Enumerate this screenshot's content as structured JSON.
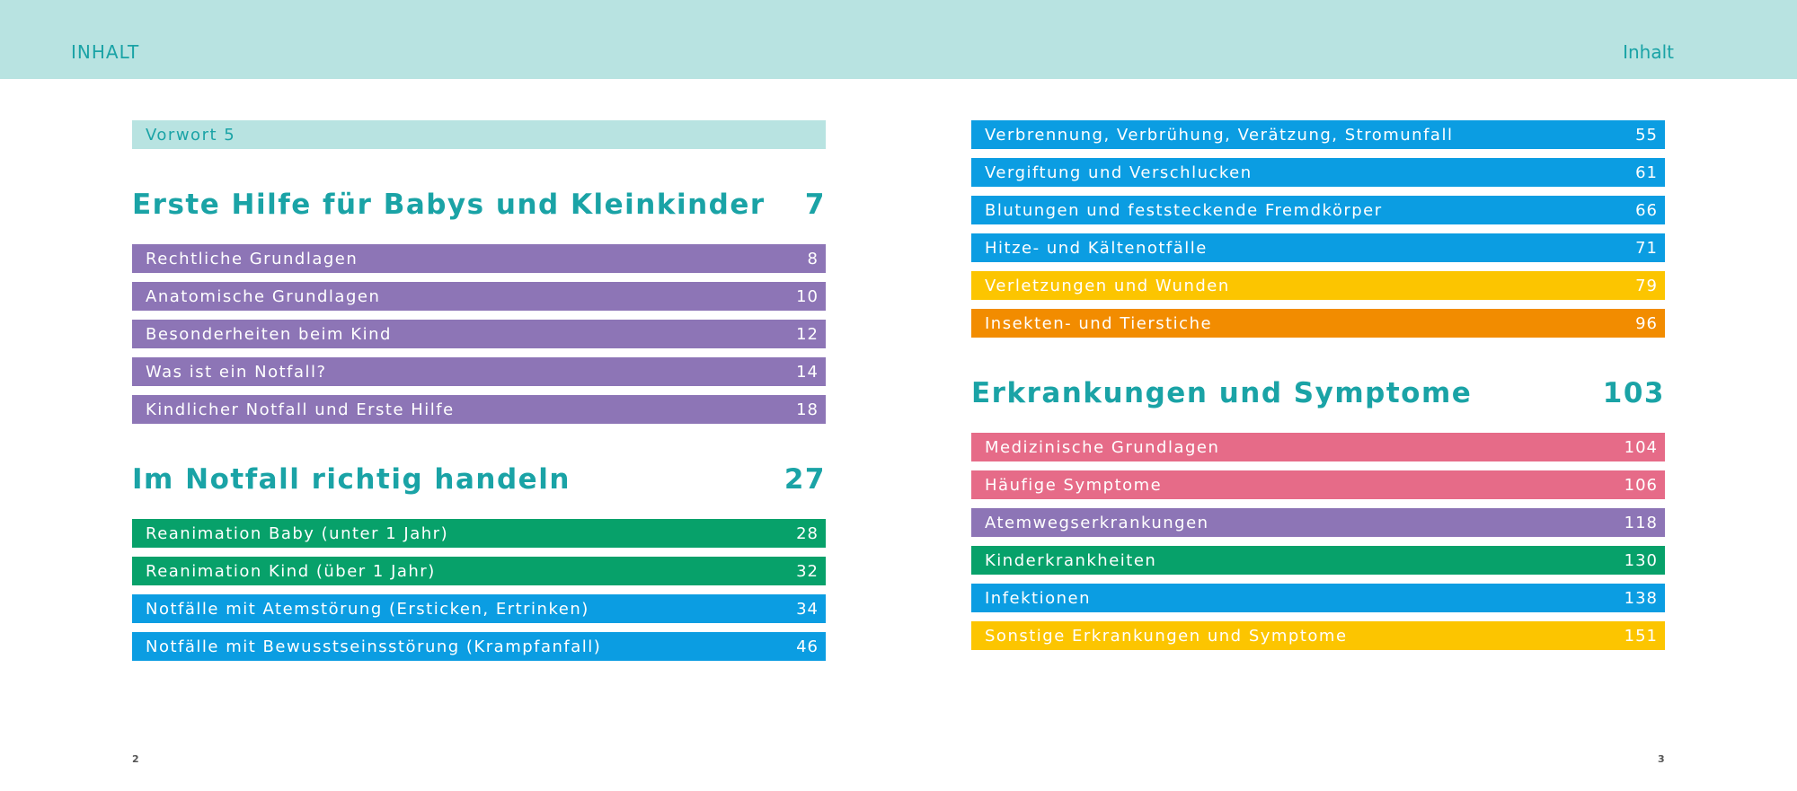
{
  "running_heads": {
    "left": "INHALT",
    "right": "Inhalt"
  },
  "folios": {
    "left": "2",
    "right": "3"
  },
  "left": {
    "vorwort": "Vorwort 5",
    "section1": {
      "title": "Erste Hilfe für Babys und Kleinkinder",
      "page": "7",
      "items": [
        {
          "label": "Rechtliche Grundlagen",
          "page": "8"
        },
        {
          "label": "Anatomische Grundlagen",
          "page": "10"
        },
        {
          "label": "Besonderheiten beim Kind",
          "page": "12"
        },
        {
          "label": "Was ist ein Notfall?",
          "page": "14"
        },
        {
          "label": "Kindlicher Notfall und Erste Hilfe",
          "page": "18"
        }
      ]
    },
    "section2": {
      "title": "Im Notfall richtig handeln",
      "page": "27",
      "items": [
        {
          "label": "Reanimation Baby (unter 1 Jahr)",
          "page": "28"
        },
        {
          "label": "Reanimation Kind (über 1 Jahr)",
          "page": "32"
        },
        {
          "label": "Notfälle mit Atemstörung (Ersticken, Ertrinken)",
          "page": "34"
        },
        {
          "label": "Notfälle mit Bewusstseinsstörung (Krampfanfall)",
          "page": "46"
        }
      ]
    }
  },
  "right": {
    "items": [
      {
        "label": "Verbrennung, Verbrühung, Verätzung, Stromunfall",
        "page": "55"
      },
      {
        "label": "Vergiftung und Verschlucken",
        "page": "61"
      },
      {
        "label": "Blutungen und feststeckende Fremdkörper",
        "page": "66"
      },
      {
        "label": "Hitze- und Kältenotfälle",
        "page": "71"
      },
      {
        "label": "Verletzungen und Wunden",
        "page": "79"
      },
      {
        "label": "Insekten- und Tierstiche",
        "page": "96"
      }
    ],
    "section3": {
      "title": "Erkrankungen und Symptome",
      "page": "103",
      "items": [
        {
          "label": "Medizinische Grundlagen",
          "page": "104"
        },
        {
          "label": "Häufige Symptome",
          "page": "106"
        },
        {
          "label": "Atemwegserkrankungen",
          "page": "118"
        },
        {
          "label": "Kinderkrankheiten",
          "page": "130"
        },
        {
          "label": "Infektionen",
          "page": "138"
        },
        {
          "label": "Sonstige Erkrankungen und Symptome",
          "page": "151"
        }
      ]
    }
  },
  "colors": {
    "teal_light": "#b8e3e1",
    "teal_text": "#1aa3a6",
    "purple": "#8d75b6",
    "green": "#07a16a",
    "blue": "#0b9de2",
    "yellow": "#fcc500",
    "orange": "#f28c00",
    "pink": "#e66b88"
  }
}
